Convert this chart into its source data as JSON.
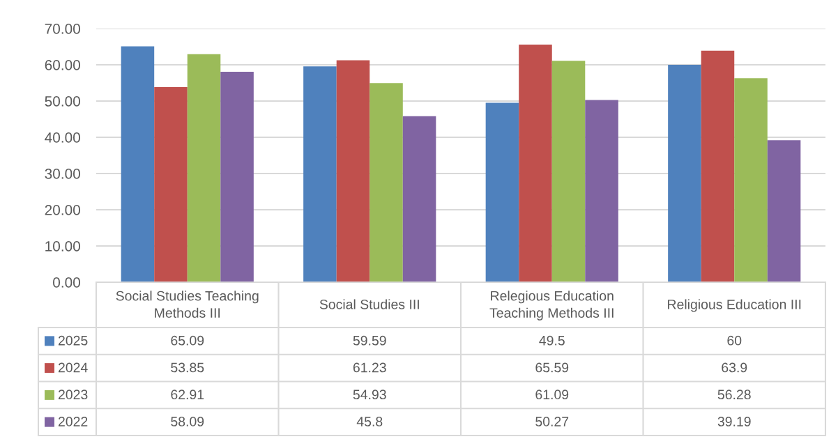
{
  "chart_data": {
    "type": "bar",
    "categories": [
      "Social Studies Teaching Methods III",
      "Social Studies III",
      "Relegious Education Teaching Methods III",
      "Religious Education III"
    ],
    "series": [
      {
        "name": "2025",
        "color": "#4f81bd",
        "values": [
          65.09,
          59.59,
          49.5,
          60
        ]
      },
      {
        "name": "2024",
        "color": "#c0504d",
        "values": [
          53.85,
          61.23,
          65.59,
          63.9
        ]
      },
      {
        "name": "2023",
        "color": "#9bbb59",
        "values": [
          62.91,
          54.93,
          61.09,
          56.28
        ]
      },
      {
        "name": "2022",
        "color": "#8064a2",
        "values": [
          58.09,
          45.8,
          50.27,
          39.19
        ]
      }
    ],
    "ylim": [
      0,
      70
    ],
    "yticks": [
      {
        "value": 0,
        "label": "0.00"
      },
      {
        "value": 10,
        "label": "10.00"
      },
      {
        "value": 20,
        "label": "20.00"
      },
      {
        "value": 30,
        "label": "30.00"
      },
      {
        "value": 40,
        "label": "40.00"
      },
      {
        "value": 50,
        "label": "50.00"
      },
      {
        "value": 60,
        "label": "60.00"
      },
      {
        "value": 70,
        "label": "70.00"
      }
    ],
    "grid": "y",
    "legend": "bottom",
    "data_labels": true
  }
}
